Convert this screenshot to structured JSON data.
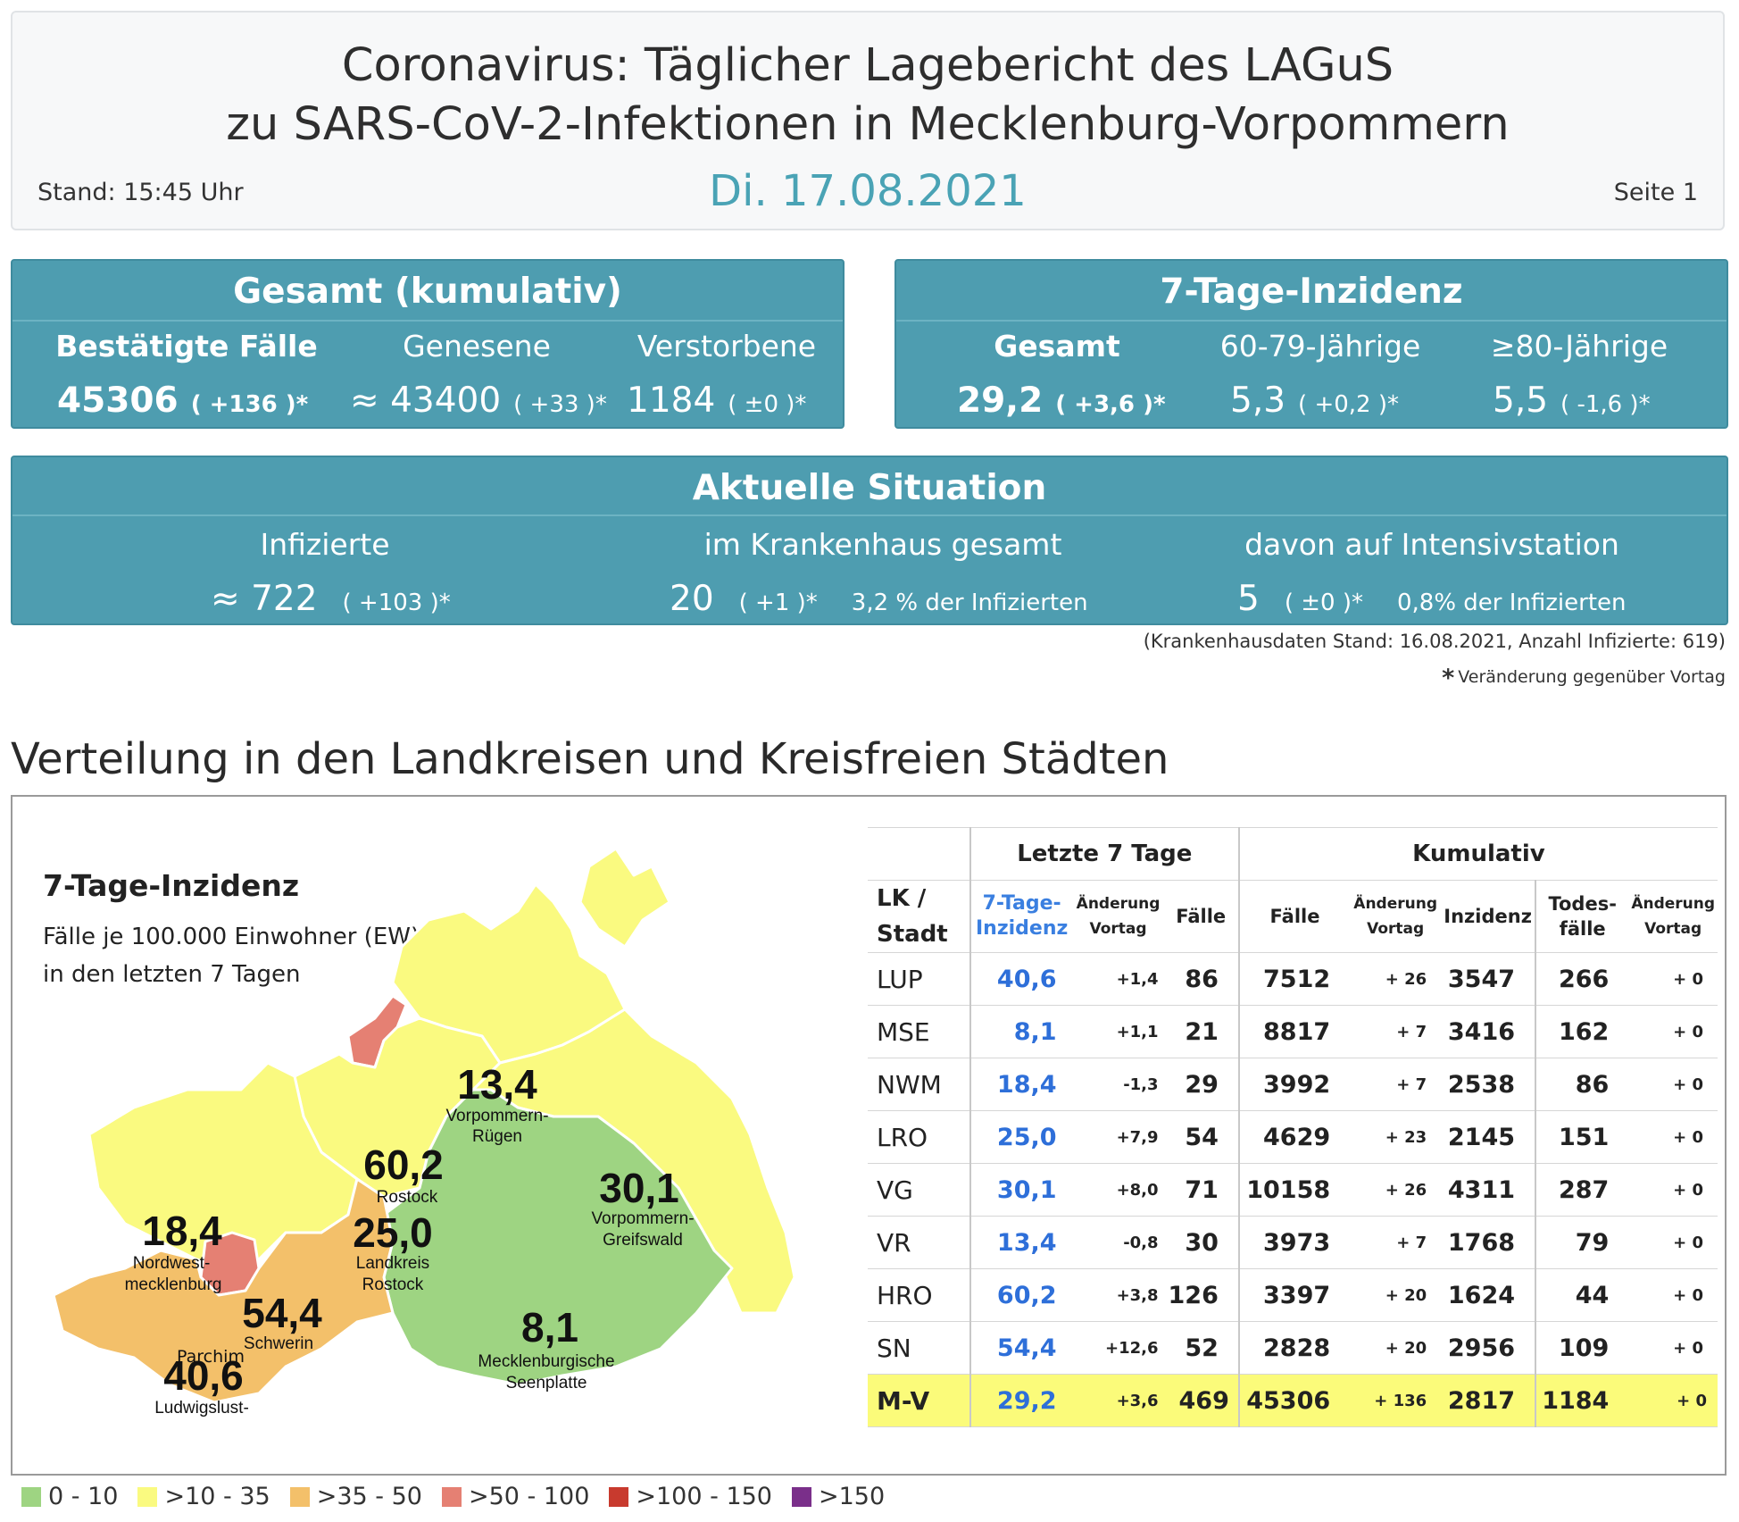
{
  "header": {
    "title_line1": "Coronavirus: Täglicher Lagebericht des LAGuS",
    "title_line2": "zu SARS-CoV-2-Infektionen in Mecklenburg-Vorpommern",
    "stand": "Stand: 15:45 Uhr",
    "date": "Di. 17.08.2021",
    "page": "Seite 1"
  },
  "gesamt": {
    "title": "Gesamt (kumulativ)",
    "labels": [
      "Bestätigte Fälle",
      "Genesene",
      "Verstorbene"
    ],
    "values": [
      "45306",
      "≈ 43400",
      "1184"
    ],
    "changes": [
      "( +136 )*",
      "( +33 )*",
      "( ±0 )*"
    ]
  },
  "inzidenz": {
    "title": "7-Tage-Inzidenz",
    "labels": [
      "Gesamt",
      "60-79-Jährige",
      "≥80-Jährige"
    ],
    "values": [
      "29,2",
      "5,3",
      "5,5"
    ],
    "changes": [
      "( +3,6 )*",
      "( +0,2 )*",
      "( -1,6 )*"
    ]
  },
  "aktuell": {
    "title": "Aktuelle Situation",
    "labels": [
      "Infizierte",
      "im Krankenhaus gesamt",
      "davon auf Intensivstation"
    ],
    "values": [
      "≈ 722",
      "20",
      "5"
    ],
    "changes": [
      "( +103 )*",
      "( +1 )*",
      "( ±0 )*"
    ],
    "extras": [
      "3,2 % der Infizierten",
      "0,8% der Infizierten"
    ]
  },
  "notes": {
    "hospital": "(Krankenhausdaten Stand: 16.08.2021, Anzahl Infizierte: 619)",
    "star": "*",
    "change": "Veränderung gegenüber Vortag"
  },
  "section_title": "Verteilung in den Landkreisen und Kreisfreien Städten",
  "map": {
    "title": "7-Tage-Inzidenz",
    "subtitle1": "Fälle je 100.000 Einwohner (EW)",
    "subtitle2": "in den letzten 7 Tagen",
    "colors": {
      "green": "#9ed482",
      "yellow": "#fafa80",
      "orange": "#f3c06a",
      "salmon": "#e58073",
      "red": "#c83a2e",
      "purple": "#7a2f8a"
    },
    "regions": [
      {
        "value": "13,4",
        "name1": "Vorpommern-",
        "name2": "Rügen"
      },
      {
        "value": "60,2",
        "name1": "Rostock",
        "name2": ""
      },
      {
        "value": "25,0",
        "name1": "Landkreis",
        "name2": "Rostock"
      },
      {
        "value": "30,1",
        "name1": "Vorpommern-",
        "name2": "Greifswald"
      },
      {
        "value": "18,4",
        "name1": "Nordwest-",
        "name2": "mecklenburg"
      },
      {
        "value": "54,4",
        "name1": "Schwerin",
        "name2": ""
      },
      {
        "value": "8,1",
        "name1": "Mecklenburgische",
        "name2": "Seenplatte"
      },
      {
        "value": "40,6",
        "name1": "Ludwigslust-",
        "name2": "Parchim"
      }
    ]
  },
  "table": {
    "group1": "Letzte 7 Tage",
    "group2": "Kumulativ",
    "col_lk1": "LK /",
    "col_lk2": "Stadt",
    "col_inz1": "7-Tage-",
    "col_inz2": "Inzidenz",
    "col_aend1": "Änderung",
    "col_aend2": "Vortag",
    "col_faelle": "Fälle",
    "col_kfaelle": "Fälle",
    "col_kaend1": "Änderung",
    "col_kaend2": "Vortag",
    "col_kinz": "Inzidenz",
    "col_tod1": "Todes-",
    "col_tod2": "fälle",
    "col_taend1": "Änderung",
    "col_taend2": "Vortag",
    "rows": [
      [
        "LUP",
        "40,6",
        "+1,4",
        "86",
        "7512",
        "+ 26",
        "3547",
        "266",
        "+ 0"
      ],
      [
        "MSE",
        "8,1",
        "+1,1",
        "21",
        "8817",
        "+ 7",
        "3416",
        "162",
        "+ 0"
      ],
      [
        "NWM",
        "18,4",
        "-1,3",
        "29",
        "3992",
        "+ 7",
        "2538",
        "86",
        "+ 0"
      ],
      [
        "LRO",
        "25,0",
        "+7,9",
        "54",
        "4629",
        "+ 23",
        "2145",
        "151",
        "+ 0"
      ],
      [
        "VG",
        "30,1",
        "+8,0",
        "71",
        "10158",
        "+ 26",
        "4311",
        "287",
        "+ 0"
      ],
      [
        "VR",
        "13,4",
        "-0,8",
        "30",
        "3973",
        "+ 7",
        "1768",
        "79",
        "+ 0"
      ],
      [
        "HRO",
        "60,2",
        "+3,8",
        "126",
        "3397",
        "+ 20",
        "1624",
        "44",
        "+ 0"
      ],
      [
        "SN",
        "54,4",
        "+12,6",
        "52",
        "2828",
        "+ 20",
        "2956",
        "109",
        "+ 0"
      ]
    ],
    "total": [
      "M-V",
      "29,2",
      "+3,6",
      "469",
      "45306",
      "+ 136",
      "2817",
      "1184",
      "+ 0"
    ]
  },
  "legend": [
    {
      "label": "0 - 10",
      "color": "#9ed482"
    },
    {
      "label": ">10 - 35",
      "color": "#fafa80"
    },
    {
      "label": ">35 - 50",
      "color": "#f3c06a"
    },
    {
      "label": ">50 - 100",
      "color": "#e58073"
    },
    {
      "label": ">100 - 150",
      "color": "#c83a2e"
    },
    {
      "label": ">150",
      "color": "#7a2f8a"
    }
  ]
}
